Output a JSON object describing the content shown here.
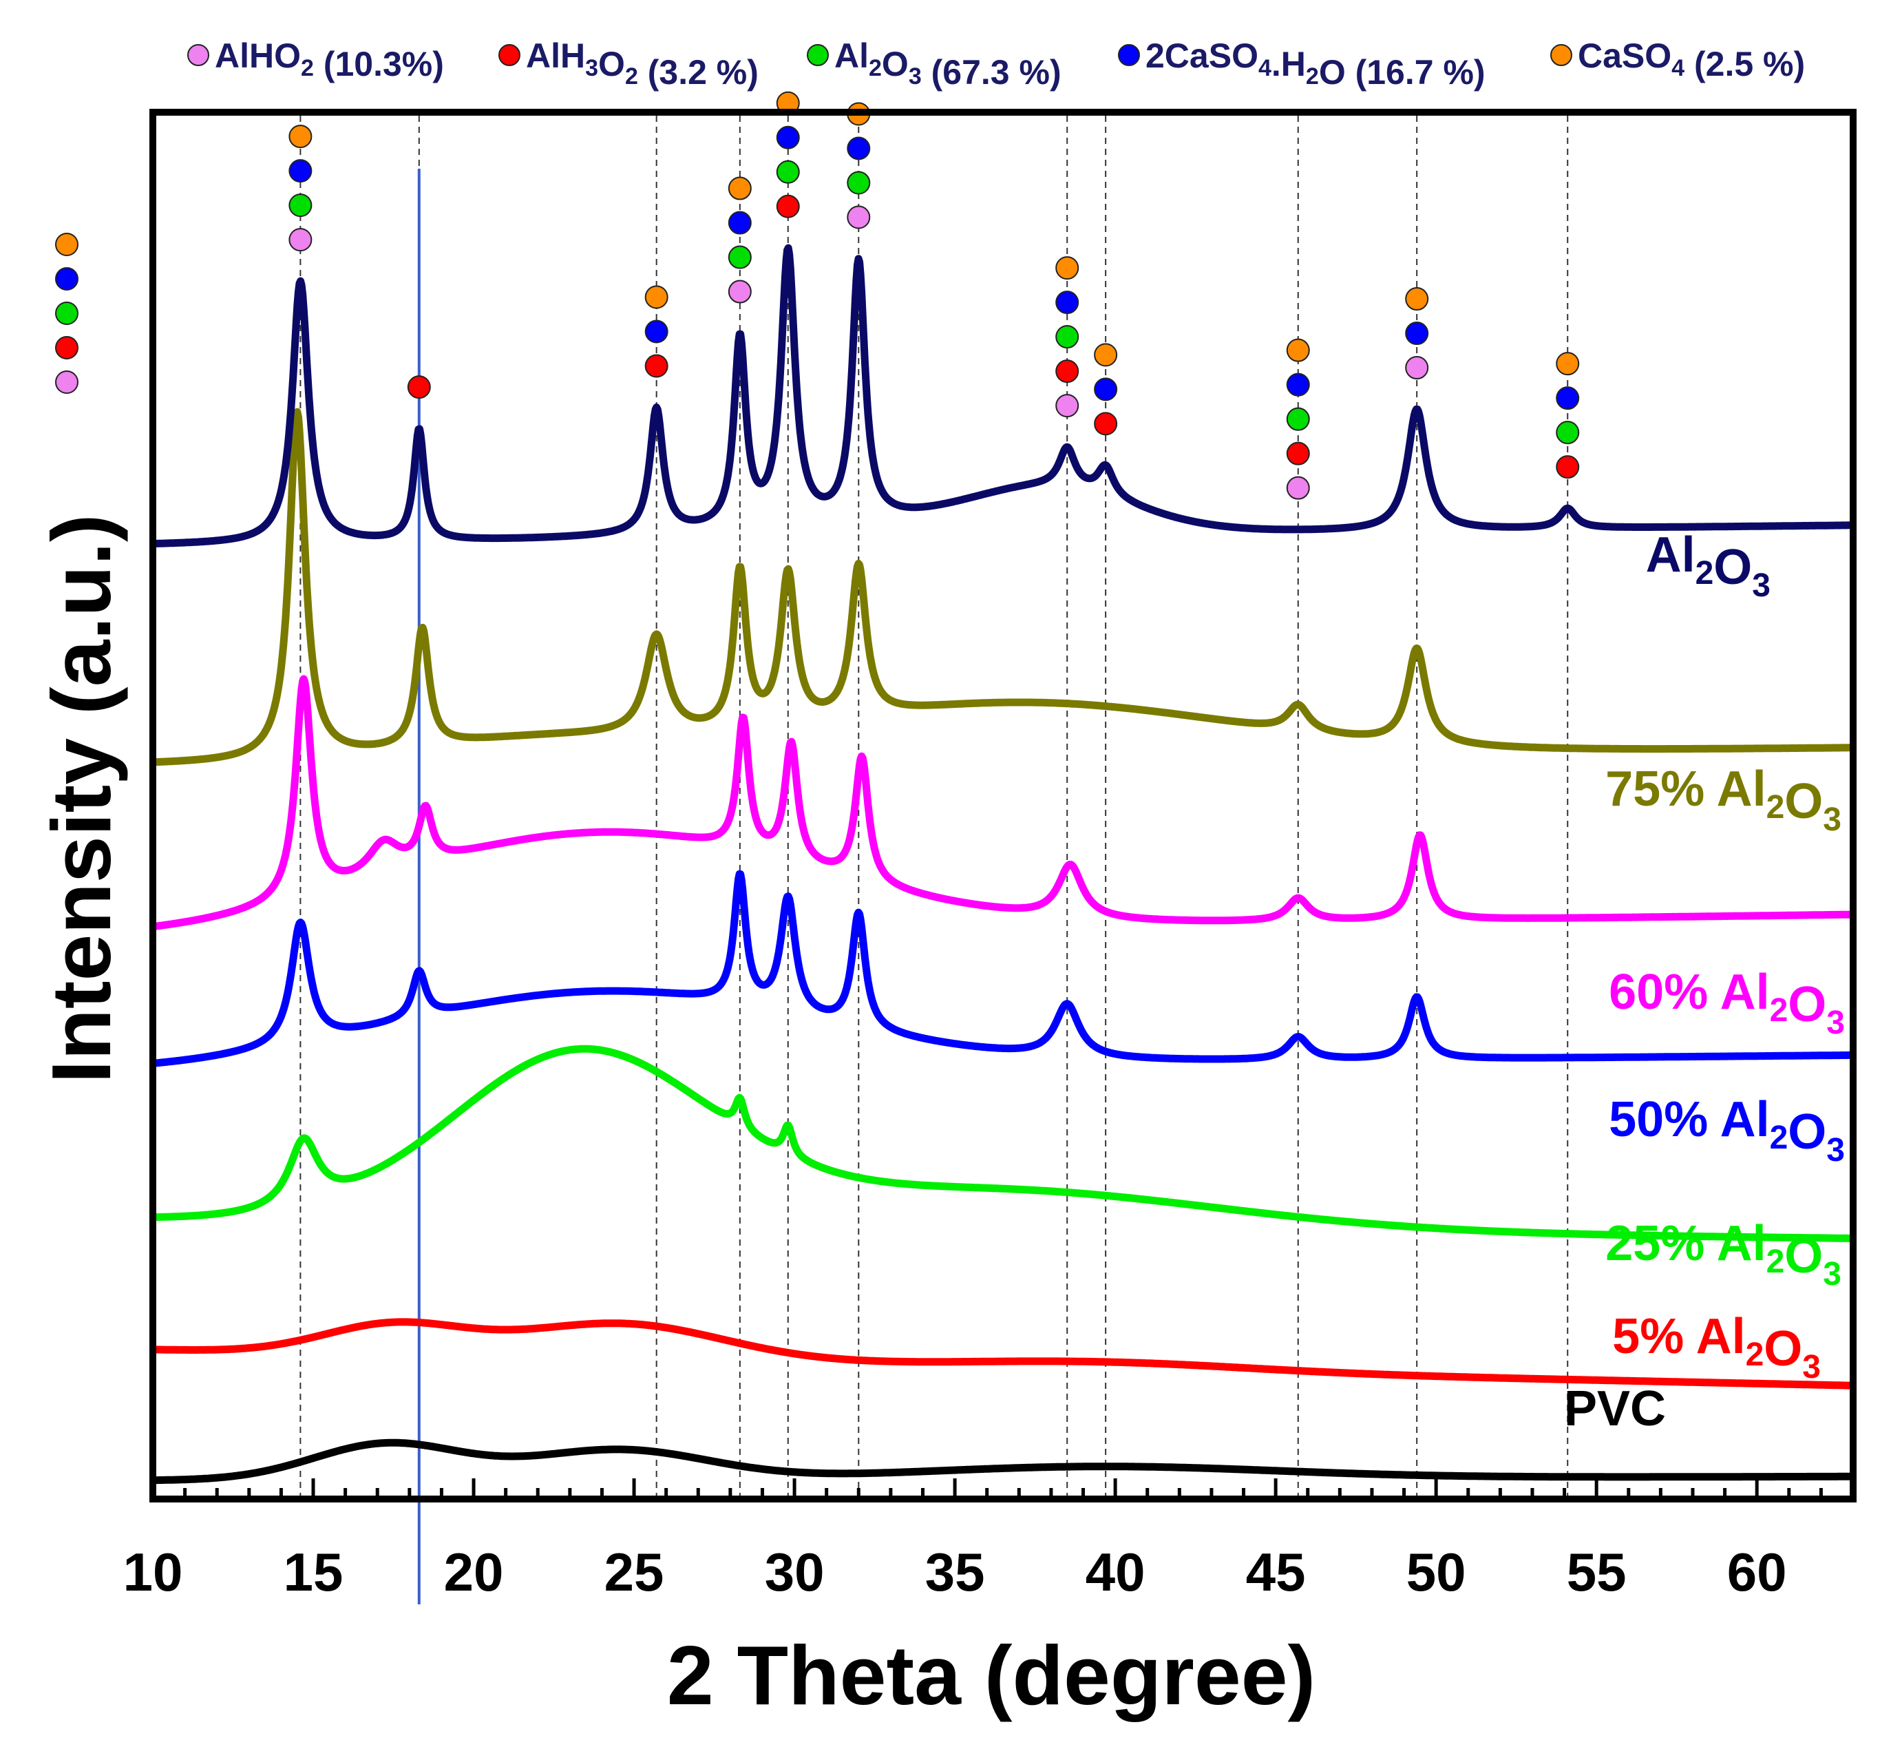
{
  "chart_data": {
    "type": "line",
    "xlabel": "2 Theta (degree)",
    "ylabel": "Intensity (a.u.)",
    "xlim": [
      10,
      63
    ],
    "x_ticks": [
      10,
      15,
      20,
      25,
      30,
      35,
      40,
      45,
      50,
      55,
      60
    ],
    "legend_placement": "top",
    "legend": [
      {
        "key": "alho2",
        "label": "AlHO",
        "sub": "2",
        "rest": " (10.3%)",
        "color": "#ee82ee"
      },
      {
        "key": "alh3o2",
        "label": "AlH",
        "sub": "3",
        "label2": "O",
        "sub2": "2",
        "rest": " (3.2 %)",
        "color": "#ff0000"
      },
      {
        "key": "al2o3",
        "label": "Al",
        "sub": "2",
        "label2": "O",
        "sub2": "3",
        "rest": " (67.3 %)",
        "color": "#00dd00"
      },
      {
        "key": "caso4h2o",
        "label": "2CaSO",
        "sub": "4",
        "label2": ".H",
        "sub2": "2",
        "rest": "O (16.7 %)",
        "color": "#0000ff"
      },
      {
        "key": "caso4",
        "label": "CaSO",
        "sub": "4",
        "rest": " (2.5 %)",
        "color": "#ff8c00"
      }
    ],
    "reference_lines": {
      "dashed": [
        14.6,
        18.3,
        25.7,
        28.3,
        29.8,
        32.0,
        38.5,
        39.7,
        45.7,
        49.4,
        54.1
      ],
      "solid": [
        18.3
      ]
    },
    "phase_markers": [
      {
        "x": 14.6,
        "phases": [
          "alho2",
          "al2o3",
          "caso4h2o",
          "caso4"
        ]
      },
      {
        "x": 18.3,
        "phases": [
          "alh3o2"
        ]
      },
      {
        "x": 25.7,
        "phases": [
          "alh3o2",
          "caso4h2o",
          "caso4"
        ]
      },
      {
        "x": 28.3,
        "phases": [
          "alho2",
          "al2o3",
          "caso4h2o",
          "caso4"
        ]
      },
      {
        "x": 29.8,
        "phases": [
          "alh3o2",
          "al2o3",
          "caso4h2o",
          "caso4"
        ]
      },
      {
        "x": 32.0,
        "phases": [
          "alho2",
          "al2o3",
          "caso4h2o",
          "caso4"
        ]
      },
      {
        "x": 38.5,
        "phases": [
          "alho2",
          "alh3o2",
          "al2o3",
          "caso4h2o",
          "caso4"
        ]
      },
      {
        "x": 39.7,
        "phases": [
          "alh3o2",
          "caso4h2o",
          "caso4"
        ]
      },
      {
        "x": 45.7,
        "phases": [
          "alho2",
          "alh3o2",
          "al2o3",
          "caso4h2o",
          "caso4"
        ]
      },
      {
        "x": 49.4,
        "phases": [
          "alho2",
          "caso4h2o",
          "caso4"
        ]
      },
      {
        "x": 54.1,
        "phases": [
          "alh3o2",
          "al2o3",
          "caso4h2o",
          "caso4"
        ]
      }
    ],
    "side_marker_stack": [
      "caso4",
      "caso4h2o",
      "al2o3",
      "alh3o2",
      "alho2"
    ],
    "series": [
      {
        "name": "PVC",
        "label_main": "PVC",
        "label_sub": "",
        "color": "#000000",
        "baseline": [
          [
            10,
            0
          ],
          [
            63,
            0.06
          ]
        ],
        "humps": [
          [
            17.3,
            2.3,
            0.55
          ],
          [
            24.5,
            2.8,
            0.45
          ],
          [
            39.5,
            5.5,
            0.18
          ]
        ],
        "peaks": []
      },
      {
        "name": "5% Al2O3",
        "label_main": "5% Al",
        "label_sub": "2",
        "label_tail": "O",
        "label_sub2": "3",
        "color": "#ff0000",
        "baseline": [
          [
            10,
            2.0
          ],
          [
            63,
            1.45
          ]
        ],
        "humps": [
          [
            17.5,
            2.2,
            0.45
          ],
          [
            24.6,
            3.2,
            0.55
          ],
          [
            39.6,
            4.5,
            0.12
          ]
        ],
        "peaks": []
      },
      {
        "name": "25% Al2O3",
        "label_main": "25% Al",
        "label_sub": "2",
        "label_tail": "O",
        "label_sub2": "3",
        "color": "#00ee00",
        "baseline": [
          [
            10,
            4.0
          ],
          [
            63,
            3.7
          ]
        ],
        "humps": [
          [
            23.3,
            4.0,
            2.55
          ],
          [
            36.0,
            7.0,
            0.6
          ]
        ],
        "peaks": [
          [
            14.7,
            0.55,
            1.0
          ],
          [
            28.3,
            0.18,
            0.45
          ],
          [
            29.8,
            0.18,
            0.45
          ]
        ]
      },
      {
        "name": "50% Al2O3",
        "label_main": "50% Al",
        "label_sub": "2",
        "label_tail": "O",
        "label_sub2": "3",
        "color": "#0000ff",
        "baseline": [
          [
            10,
            6.25
          ],
          [
            63,
            6.5
          ]
        ],
        "humps": [
          [
            24.0,
            6.5,
            1.15
          ]
        ],
        "peaks": [
          [
            14.6,
            0.35,
            1.85
          ],
          [
            18.3,
            0.25,
            0.7
          ],
          [
            28.3,
            0.22,
            1.95
          ],
          [
            29.8,
            0.28,
            1.75
          ],
          [
            32.0,
            0.25,
            1.75
          ],
          [
            38.5,
            0.45,
            0.8
          ],
          [
            45.7,
            0.4,
            0.35
          ],
          [
            49.4,
            0.3,
            0.95
          ]
        ]
      },
      {
        "name": "60% Al2O3",
        "label_main": "60% Al",
        "label_sub": "2",
        "label_tail": "O",
        "label_sub2": "3",
        "color": "#ff00ff",
        "baseline": [
          [
            10,
            8.3
          ],
          [
            63,
            8.65
          ]
        ],
        "humps": [
          [
            24.0,
            6.5,
            1.5
          ]
        ],
        "peaks": [
          [
            14.7,
            0.3,
            3.35
          ],
          [
            17.2,
            0.6,
            0.5
          ],
          [
            18.5,
            0.25,
            0.8
          ],
          [
            28.4,
            0.22,
            2.0
          ],
          [
            29.9,
            0.24,
            1.8
          ],
          [
            32.1,
            0.25,
            1.9
          ],
          [
            38.6,
            0.45,
            0.8
          ],
          [
            45.7,
            0.4,
            0.35
          ],
          [
            49.5,
            0.3,
            1.3
          ]
        ]
      },
      {
        "name": "75% Al2O3",
        "label_main": "75% Al",
        "label_sub": "2",
        "label_tail": "O",
        "label_sub2": "3",
        "color": "#7a7a00",
        "baseline": [
          [
            10,
            10.95
          ],
          [
            63,
            11.2
          ]
        ],
        "humps": [
          [
            37.0,
            6.5,
            0.8
          ],
          [
            22.0,
            4.0,
            0.3
          ]
        ],
        "peaks": [
          [
            14.5,
            0.3,
            5.3
          ],
          [
            18.4,
            0.25,
            1.8
          ],
          [
            25.7,
            0.4,
            1.5
          ],
          [
            28.3,
            0.24,
            2.4
          ],
          [
            29.8,
            0.28,
            2.3
          ],
          [
            32.0,
            0.28,
            2.3
          ],
          [
            45.7,
            0.4,
            0.4
          ],
          [
            49.4,
            0.35,
            1.45
          ]
        ]
      },
      {
        "name": "Al2O3",
        "label_main": "Al",
        "label_sub": "2",
        "label_tail": "O",
        "label_sub2": "3",
        "color": "#0a0a66",
        "baseline": [
          [
            10,
            14.3
          ],
          [
            63,
            14.6
          ]
        ],
        "humps": [
          [
            38.0,
            2.5,
            0.6
          ],
          [
            33.0,
            5.0,
            0.2
          ]
        ],
        "peaks": [
          [
            14.6,
            0.3,
            4.0
          ],
          [
            18.3,
            0.2,
            1.7
          ],
          [
            25.7,
            0.25,
            1.9
          ],
          [
            28.3,
            0.22,
            2.85
          ],
          [
            29.8,
            0.26,
            4.15
          ],
          [
            32.0,
            0.24,
            3.95
          ],
          [
            38.5,
            0.3,
            0.6
          ],
          [
            39.7,
            0.3,
            0.45
          ],
          [
            49.4,
            0.35,
            1.85
          ],
          [
            54.1,
            0.3,
            0.3
          ]
        ]
      }
    ]
  }
}
